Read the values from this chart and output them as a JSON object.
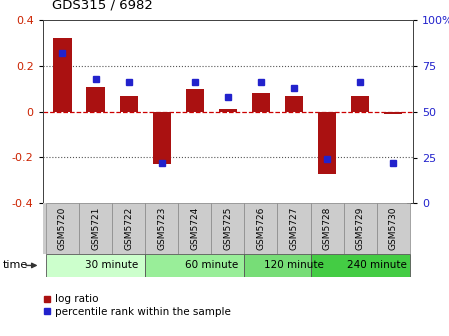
{
  "title": "GDS315 / 6982",
  "samples": [
    "GSM5720",
    "GSM5721",
    "GSM5722",
    "GSM5723",
    "GSM5724",
    "GSM5725",
    "GSM5726",
    "GSM5727",
    "GSM5728",
    "GSM5729",
    "GSM5730"
  ],
  "log_ratio": [
    0.32,
    0.11,
    0.07,
    -0.23,
    0.1,
    0.01,
    0.08,
    0.07,
    -0.27,
    0.07,
    -0.01
  ],
  "percentile": [
    82,
    68,
    66,
    22,
    66,
    58,
    66,
    63,
    24,
    66,
    22
  ],
  "bar_color": "#aa1111",
  "point_color": "#2222cc",
  "ylim": [
    -0.4,
    0.4
  ],
  "yticks_left": [
    -0.4,
    -0.2,
    0.0,
    0.2,
    0.4
  ],
  "yticks_right": [
    0,
    25,
    50,
    75,
    100
  ],
  "ylabel_left_color": "#cc2200",
  "ylabel_right_color": "#2222cc",
  "hline_color": "#cc0000",
  "dotted_color": "#555555",
  "groups": [
    {
      "label": "30 minute",
      "start": 0,
      "end": 3,
      "color": "#ccffcc"
    },
    {
      "label": "60 minute",
      "start": 3,
      "end": 6,
      "color": "#99ee99"
    },
    {
      "label": "120 minute",
      "start": 6,
      "end": 8,
      "color": "#77dd77"
    },
    {
      "label": "240 minute",
      "start": 8,
      "end": 11,
      "color": "#44cc44"
    }
  ],
  "time_label": "time",
  "legend_ratio_label": "log ratio",
  "legend_pct_label": "percentile rank within the sample",
  "bar_width": 0.55,
  "background_color": "#ffffff",
  "sample_bg": "#cccccc",
  "sample_border": "#888888"
}
